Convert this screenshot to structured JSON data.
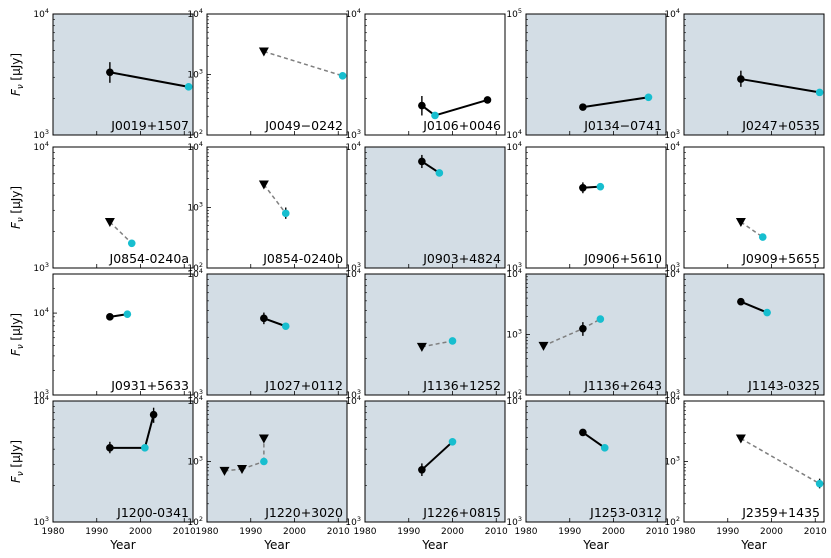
{
  "chart_data": {
    "type": "scatter",
    "xlabel": "Year",
    "ylabel": "F_ν [μJy]",
    "ylabel_parts": {
      "symbol": "F",
      "subscript": "ν",
      "units": "[μJy]"
    },
    "x_ticks": [
      "1980",
      "1990",
      "2000",
      "2010"
    ],
    "xlim": [
      1980,
      2012
    ],
    "y_scale": "log",
    "colors": {
      "shaded": "#d3dde5",
      "early": "#000000",
      "recent": "#17becf",
      "dashed": "#7f7f7f"
    },
    "panels": [
      {
        "name": "J0019+1507",
        "shaded": true,
        "ylim": [
          1000,
          10000
        ],
        "y_ticks": [
          {
            "v": 1000,
            "label": "10",
            "exp": "3"
          },
          {
            "v": 10000,
            "label": "10",
            "exp": "4"
          }
        ],
        "line": "solid",
        "points": [
          {
            "year": 1993,
            "flux": 3300,
            "kind": "detection",
            "err": [
              2700,
              4000
            ]
          },
          {
            "year": 2011,
            "flux": 2500,
            "kind": "recent"
          }
        ]
      },
      {
        "name": "J0049−0242",
        "shaded": false,
        "ylim": [
          100,
          10000
        ],
        "y_ticks": [
          {
            "v": 100,
            "label": "10",
            "exp": "2"
          },
          {
            "v": 1000,
            "label": "10",
            "exp": "3"
          },
          {
            "v": 10000,
            "label": "10",
            "exp": "4"
          }
        ],
        "line": "dashed",
        "points": [
          {
            "year": 1993,
            "flux": 2400,
            "kind": "upper_limit"
          },
          {
            "year": 2011,
            "flux": 950,
            "kind": "recent"
          }
        ]
      },
      {
        "name": "J0106+0046",
        "shaded": false,
        "ylim": [
          1000,
          10000
        ],
        "y_ticks": [
          {
            "v": 1000,
            "label": "10",
            "exp": "3"
          },
          {
            "v": 10000,
            "label": "10",
            "exp": "4"
          }
        ],
        "line": "solid",
        "points": [
          {
            "year": 1993,
            "flux": 1750,
            "kind": "detection",
            "err": [
              1450,
              2100
            ]
          },
          {
            "year": 1996,
            "flux": 1450,
            "kind": "recent"
          },
          {
            "year": 2008,
            "flux": 1950,
            "kind": "detection"
          }
        ]
      },
      {
        "name": "J0134−0741",
        "shaded": true,
        "ylim": [
          10000,
          100000
        ],
        "y_ticks": [
          {
            "v": 10000,
            "label": "10",
            "exp": "4"
          },
          {
            "v": 100000,
            "label": "10",
            "exp": "5"
          }
        ],
        "line": "solid",
        "points": [
          {
            "year": 1993,
            "flux": 17000,
            "kind": "detection"
          },
          {
            "year": 2008,
            "flux": 20500,
            "kind": "recent"
          }
        ]
      },
      {
        "name": "J0247+0535",
        "shaded": true,
        "ylim": [
          1000,
          10000
        ],
        "y_ticks": [
          {
            "v": 1000,
            "label": "10",
            "exp": "3"
          },
          {
            "v": 10000,
            "label": "10",
            "exp": "4"
          }
        ],
        "line": "solid",
        "points": [
          {
            "year": 1993,
            "flux": 2900,
            "kind": "detection",
            "err": [
              2500,
              3400
            ]
          },
          {
            "year": 2011,
            "flux": 2250,
            "kind": "recent"
          }
        ]
      },
      {
        "name": "J0854-0240a",
        "shaded": false,
        "ylim": [
          1000,
          10000
        ],
        "y_ticks": [
          {
            "v": 1000,
            "label": "10",
            "exp": "3"
          },
          {
            "v": 10000,
            "label": "10",
            "exp": "4"
          }
        ],
        "line": "dashed",
        "points": [
          {
            "year": 1993,
            "flux": 2400,
            "kind": "upper_limit"
          },
          {
            "year": 1998,
            "flux": 1600,
            "kind": "recent"
          }
        ]
      },
      {
        "name": "J0854-0240b",
        "shaded": false,
        "ylim": [
          100,
          10000
        ],
        "y_ticks": [
          {
            "v": 100,
            "label": "10",
            "exp": "2"
          },
          {
            "v": 1000,
            "label": "10",
            "exp": "3"
          },
          {
            "v": 10000,
            "label": "10",
            "exp": "4"
          }
        ],
        "line": "dashed",
        "points": [
          {
            "year": 1993,
            "flux": 2400,
            "kind": "upper_limit"
          },
          {
            "year": 1998,
            "flux": 800,
            "kind": "recent",
            "err": [
              650,
              1000
            ]
          }
        ]
      },
      {
        "name": "J0903+4824",
        "shaded": true,
        "ylim": [
          1000,
          10000
        ],
        "y_ticks": [
          {
            "v": 1000,
            "label": "10",
            "exp": "3"
          },
          {
            "v": 10000,
            "label": "10",
            "exp": "4"
          }
        ],
        "line": "solid",
        "points": [
          {
            "year": 1993,
            "flux": 7600,
            "kind": "detection",
            "err": [
              6700,
              8600
            ]
          },
          {
            "year": 1997,
            "flux": 6100,
            "kind": "recent"
          }
        ]
      },
      {
        "name": "J0906+5610",
        "shaded": false,
        "ylim": [
          1000,
          10000
        ],
        "y_ticks": [
          {
            "v": 1000,
            "label": "10",
            "exp": "3"
          },
          {
            "v": 10000,
            "label": "10",
            "exp": "4"
          }
        ],
        "line": "solid",
        "points": [
          {
            "year": 1993,
            "flux": 4600,
            "kind": "detection",
            "err": [
              4150,
              5100
            ]
          },
          {
            "year": 1997,
            "flux": 4700,
            "kind": "recent"
          }
        ]
      },
      {
        "name": "J0909+5655",
        "shaded": false,
        "ylim": [
          1000,
          10000
        ],
        "y_ticks": [
          {
            "v": 1000,
            "label": "10",
            "exp": "3"
          },
          {
            "v": 10000,
            "label": "10",
            "exp": "4"
          }
        ],
        "line": "dashed",
        "points": [
          {
            "year": 1993,
            "flux": 2400,
            "kind": "upper_limit"
          },
          {
            "year": 1998,
            "flux": 1800,
            "kind": "recent"
          }
        ]
      },
      {
        "name": "J0931+5633",
        "shaded": false,
        "ylim": [
          1000,
          30000
        ],
        "y_ticks": [
          {
            "v": 1000,
            "label": "10",
            "exp": "3"
          },
          {
            "v": 10000,
            "label": "10",
            "exp": "4"
          }
        ],
        "line": "solid",
        "points": [
          {
            "year": 1993,
            "flux": 9000,
            "kind": "detection"
          },
          {
            "year": 1997,
            "flux": 9700,
            "kind": "recent"
          }
        ]
      },
      {
        "name": "J1027+0112",
        "shaded": true,
        "ylim": [
          1000,
          10000
        ],
        "y_ticks": [
          {
            "v": 1000,
            "label": "10",
            "exp": "3"
          },
          {
            "v": 10000,
            "label": "10",
            "exp": "4"
          }
        ],
        "line": "solid",
        "points": [
          {
            "year": 1993,
            "flux": 4300,
            "kind": "detection",
            "err": [
              3850,
              4800
            ]
          },
          {
            "year": 1998,
            "flux": 3700,
            "kind": "recent"
          }
        ]
      },
      {
        "name": "J1136+1252",
        "shaded": true,
        "ylim": [
          1000,
          10000
        ],
        "y_ticks": [
          {
            "v": 1000,
            "label": "10",
            "exp": "3"
          },
          {
            "v": 10000,
            "label": "10",
            "exp": "4"
          }
        ],
        "line": "dashed",
        "points": [
          {
            "year": 1993,
            "flux": 2500,
            "kind": "upper_limit"
          },
          {
            "year": 2000,
            "flux": 2800,
            "kind": "recent"
          }
        ]
      },
      {
        "name": "J1136+2643",
        "shaded": true,
        "ylim": [
          100,
          10000
        ],
        "y_ticks": [
          {
            "v": 100,
            "label": "10",
            "exp": "2"
          },
          {
            "v": 1000,
            "label": "10",
            "exp": "3"
          },
          {
            "v": 10000,
            "label": "10",
            "exp": "4"
          }
        ],
        "line": "dashed",
        "points": [
          {
            "year": 1984,
            "flux": 650,
            "kind": "upper_limit"
          },
          {
            "year": 1993,
            "flux": 1250,
            "kind": "detection",
            "err": [
              950,
              1600
            ]
          },
          {
            "year": 1997,
            "flux": 1800,
            "kind": "recent"
          }
        ]
      },
      {
        "name": "J1143-0325",
        "shaded": true,
        "ylim": [
          1000,
          10000
        ],
        "y_ticks": [
          {
            "v": 1000,
            "label": "10",
            "exp": "3"
          },
          {
            "v": 10000,
            "label": "10",
            "exp": "4"
          }
        ],
        "line": "solid",
        "points": [
          {
            "year": 1993,
            "flux": 5900,
            "kind": "detection"
          },
          {
            "year": 1999,
            "flux": 4800,
            "kind": "recent"
          }
        ]
      },
      {
        "name": "J1200-0341",
        "shaded": true,
        "ylim": [
          1000,
          10000
        ],
        "y_ticks": [
          {
            "v": 1000,
            "label": "10",
            "exp": "3"
          },
          {
            "v": 10000,
            "label": "10",
            "exp": "4"
          }
        ],
        "line": "solid",
        "points": [
          {
            "year": 1993,
            "flux": 4100,
            "kind": "detection",
            "err": [
              3700,
              4600
            ]
          },
          {
            "year": 2001,
            "flux": 4100,
            "kind": "recent"
          },
          {
            "year": 2003,
            "flux": 7700,
            "kind": "detection",
            "err": [
              6600,
              8800
            ]
          }
        ]
      },
      {
        "name": "J1220+3020",
        "shaded": true,
        "ylim": [
          100,
          10000
        ],
        "y_ticks": [
          {
            "v": 100,
            "label": "10",
            "exp": "2"
          },
          {
            "v": 1000,
            "label": "10",
            "exp": "3"
          },
          {
            "v": 10000,
            "label": "10",
            "exp": "4"
          }
        ],
        "line": "dashed",
        "points": [
          {
            "year": 1984,
            "flux": 700,
            "kind": "upper_limit"
          },
          {
            "year": 1988,
            "flux": 750,
            "kind": "upper_limit"
          },
          {
            "year": 1993,
            "flux": 1000,
            "kind": "recent"
          },
          {
            "year": 1993,
            "flux": 2400,
            "kind": "upper_limit"
          }
        ]
      },
      {
        "name": "J1226+0815",
        "shaded": true,
        "ylim": [
          1000,
          10000
        ],
        "y_ticks": [
          {
            "v": 1000,
            "label": "10",
            "exp": "3"
          },
          {
            "v": 10000,
            "label": "10",
            "exp": "4"
          }
        ],
        "line": "solid",
        "points": [
          {
            "year": 1993,
            "flux": 2700,
            "kind": "detection",
            "err": [
              2400,
              3050
            ]
          },
          {
            "year": 2000,
            "flux": 4600,
            "kind": "recent"
          }
        ]
      },
      {
        "name": "J1253-0312",
        "shaded": true,
        "ylim": [
          1000,
          10000
        ],
        "y_ticks": [
          {
            "v": 1000,
            "label": "10",
            "exp": "3"
          },
          {
            "v": 10000,
            "label": "10",
            "exp": "4"
          }
        ],
        "line": "solid",
        "points": [
          {
            "year": 1993,
            "flux": 5500,
            "kind": "detection"
          },
          {
            "year": 1998,
            "flux": 4100,
            "kind": "recent"
          }
        ]
      },
      {
        "name": "J2359+1435",
        "shaded": false,
        "ylim": [
          100,
          10000
        ],
        "y_ticks": [
          {
            "v": 100,
            "label": "10",
            "exp": "2"
          },
          {
            "v": 1000,
            "label": "10",
            "exp": "3"
          },
          {
            "v": 10000,
            "label": "10",
            "exp": "4"
          }
        ],
        "line": "dashed",
        "points": [
          {
            "year": 1993,
            "flux": 2400,
            "kind": "upper_limit"
          },
          {
            "year": 2011,
            "flux": 430,
            "kind": "recent",
            "err": [
              360,
              520
            ]
          }
        ]
      }
    ]
  }
}
